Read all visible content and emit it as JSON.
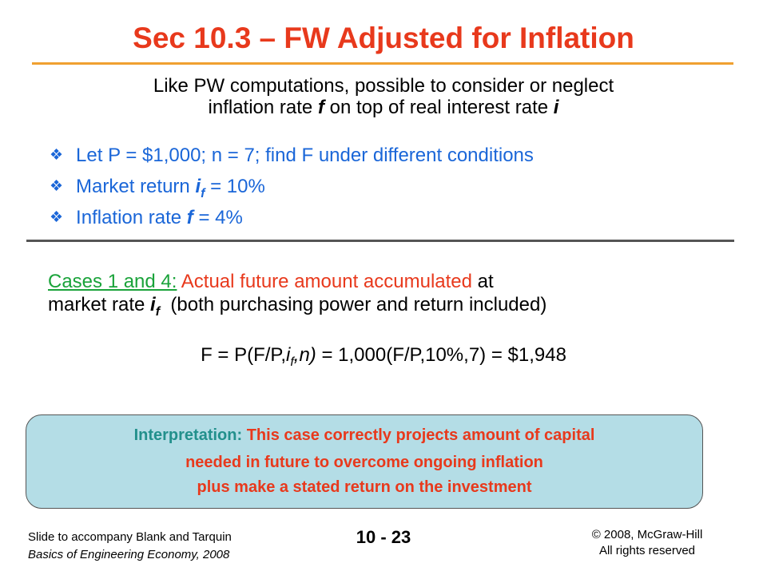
{
  "title": "Sec 10.3 – FW Adjusted for Inflation",
  "intro": {
    "line1": "Like PW computations, possible to consider or neglect",
    "line2_pre": "inflation rate ",
    "line2_f": "f",
    "line2_mid": " on top of real interest rate ",
    "line2_i": "i"
  },
  "bullets": {
    "b1": "Let P = $1,000; n = 7; find F under different conditions",
    "b2_pre": "Market return ",
    "b2_i": "i",
    "b2_sub": "f",
    "b2_post": " = 10%",
    "b3_pre": "Inflation rate ",
    "b3_f": "f",
    "b3_post": " = 4%"
  },
  "case": {
    "label": "Cases 1 and 4:",
    "red_text": " Actual future amount accumulated",
    "line1_end": " at",
    "line2_pre": "market rate ",
    "line2_i": "i",
    "line2_sub": "f",
    "line2_post": "  (both purchasing power and return included)"
  },
  "formula": {
    "pre": "F = P(F/P,",
    "i": "i",
    "sub": "f",
    "mid": ",n)",
    "post": " = 1,000(F/P,10%,7) = $1,948"
  },
  "interpretation": {
    "label": "Interpretation:",
    "line1": " This case correctly projects amount of capital",
    "line2": "needed in future to overcome ongoing inflation",
    "line3": "plus make a stated return on the investment"
  },
  "footer": {
    "left1": "Slide to accompany Blank and Tarquin",
    "left2": "Basics of Engineering Economy, 2008",
    "slide_number": "10 - 23",
    "right1": "© 2008, McGraw-Hill",
    "right2": "All rights reserved"
  },
  "colors": {
    "title": "#e8391c",
    "bullet_text": "#1a66d8",
    "case_label": "#1aa33a",
    "box_background": "#b4dde6",
    "interpretation_label": "#22908c"
  },
  "icons": {
    "bullet": "diamond-bullet-icon"
  }
}
